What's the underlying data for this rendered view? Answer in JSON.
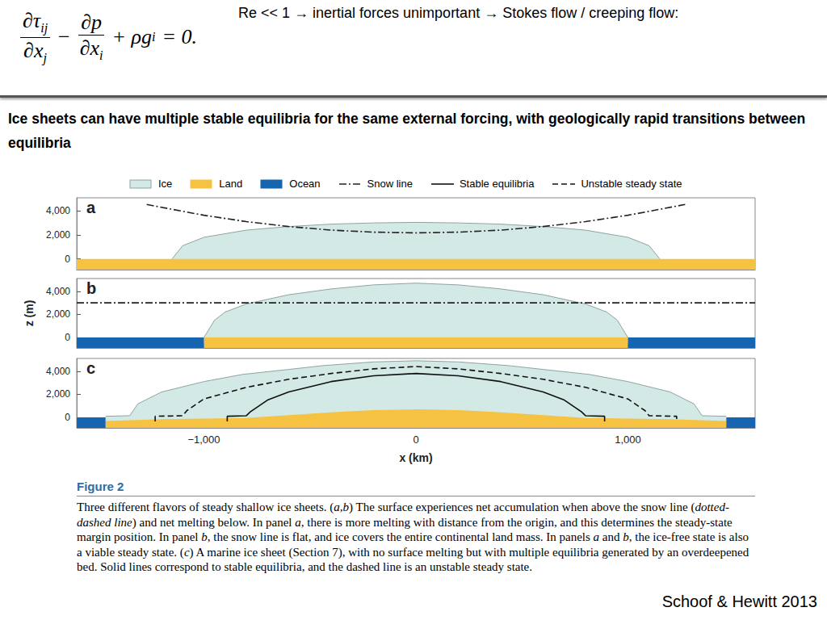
{
  "equation": [
    {
      "frac": {
        "num": [
          "∂τ",
          "ij"
        ],
        "den": [
          "∂x",
          "j"
        ]
      }
    },
    {
      "text": "−"
    },
    {
      "frac": {
        "num": [
          "∂p"
        ],
        "den": [
          "∂x",
          "i"
        ]
      }
    },
    {
      "text": "+ ρg"
    },
    {
      "sub": "i"
    },
    {
      "text": "= 0."
    }
  ],
  "note": "Re << 1 → inertial forces unimportant → Stokes flow / creeping flow:",
  "headline": "Ice sheets can have multiple stable equilibria for the same external forcing, with geologically rapid transitions between equilibria",
  "figure_legend": [
    "Ice",
    "Land",
    "Ocean",
    "Snow line",
    "Stable equilibria",
    "Unstable steady state"
  ],
  "chart_data": [
    {
      "type": "line",
      "label": "a",
      "xlim": [
        -1600,
        1600
      ],
      "ylim": [
        -900,
        5100
      ],
      "xticks": [
        {
          "value": -1000,
          "label": "−1,000"
        },
        0,
        {
          "value": 1000,
          "label": "1,000"
        }
      ],
      "yticks": [
        0,
        {
          "value": 2000,
          "label": "2,000"
        },
        {
          "value": 4000,
          "label": "4,000"
        }
      ],
      "grid": false,
      "tick_labels": "y",
      "series": [
        {
          "name": "Ice",
          "type": "area",
          "color": "#d3e9e6",
          "x": [
            -1150,
            -1100,
            -1000,
            -800,
            -600,
            -400,
            -200,
            0,
            200,
            400,
            600,
            800,
            1000,
            1100,
            1150
          ],
          "values": [
            0,
            1100,
            1800,
            2400,
            2700,
            2900,
            3000,
            3050,
            3000,
            2900,
            2700,
            2400,
            1800,
            1100,
            0
          ]
        },
        {
          "name": "Land",
          "type": "area",
          "color": "#f5c242",
          "x": [
            -1600,
            1600
          ],
          "values": [
            0,
            0
          ]
        },
        {
          "name": "Snow line",
          "type": "line",
          "color": "#222222",
          "line_style": "dashdot",
          "x": [
            -1270,
            -1000,
            -800,
            -600,
            -400,
            -200,
            0,
            200,
            400,
            600,
            800,
            1000,
            1270
          ],
          "values": [
            4540,
            3640,
            3110,
            2700,
            2400,
            2230,
            2170,
            2230,
            2400,
            2700,
            3110,
            3640,
            4540
          ]
        }
      ]
    },
    {
      "type": "line",
      "label": "b",
      "ylabel": "z (m)",
      "xlim": [
        -1600,
        1600
      ],
      "ylim": [
        -900,
        5100
      ],
      "xticks": [
        {
          "value": -1000,
          "label": "−1,000"
        },
        0,
        {
          "value": 1000,
          "label": "1,000"
        }
      ],
      "yticks": [
        0,
        {
          "value": 2000,
          "label": "2,000"
        },
        {
          "value": 4000,
          "label": "4,000"
        }
      ],
      "grid": false,
      "tick_labels": "y",
      "series": [
        {
          "name": "Ice",
          "type": "area",
          "color": "#d3e9e6",
          "x": [
            -1000,
            -950,
            -900,
            -800,
            -600,
            -400,
            -200,
            0,
            200,
            400,
            600,
            800,
            900,
            950,
            1000
          ],
          "values": [
            0,
            1500,
            2200,
            2900,
            3700,
            4200,
            4550,
            4700,
            4550,
            4200,
            3700,
            2900,
            2200,
            1500,
            0
          ]
        },
        {
          "name": "Land",
          "type": "area",
          "color": "#f5c242",
          "x": [
            -1000,
            1000
          ],
          "values": [
            0,
            0
          ]
        },
        {
          "name": "Ocean",
          "type": "area",
          "color": "#1565b0",
          "x": [
            -1600,
            -1000,
            -1000,
            1000,
            1000,
            1600
          ],
          "values": [
            0,
            0,
            null,
            null,
            0,
            0
          ]
        },
        {
          "name": "Snow line",
          "type": "line",
          "color": "#222222",
          "line_style": "dashdot",
          "x": [
            -1600,
            1600
          ],
          "values": [
            3000,
            3000
          ]
        }
      ]
    },
    {
      "type": "line",
      "label": "c",
      "xlabel": "x (km)",
      "xlim": [
        -1600,
        1600
      ],
      "ylim": [
        -900,
        5100
      ],
      "xticks": [
        {
          "value": -1000,
          "label": "−1,000"
        },
        0,
        {
          "value": 1000,
          "label": "1,000"
        }
      ],
      "yticks": [
        0,
        {
          "value": 2000,
          "label": "2,000"
        },
        {
          "value": 4000,
          "label": "4,000"
        }
      ],
      "grid": false,
      "series": [
        {
          "name": "Ice",
          "type": "area",
          "color": "#d3e9e6",
          "x": [
            -1464,
            -1350,
            -1312,
            -1200,
            -1000,
            -817,
            -600,
            -437,
            -200,
            0,
            200,
            437,
            600,
            817,
            1000,
            1200,
            1312,
            1350,
            1464
          ],
          "values": [
            100,
            150,
            1170,
            2200,
            3100,
            3720,
            4150,
            4480,
            4800,
            4900,
            4800,
            4480,
            4150,
            3720,
            3100,
            2200,
            1170,
            150,
            100
          ]
        },
        {
          "name": "Land",
          "type": "area",
          "color": "#f5c242",
          "x": [
            -1464,
            -1200,
            -1000,
            -800,
            -600,
            -400,
            -200,
            0,
            200,
            400,
            600,
            800,
            1000,
            1200,
            1464
          ],
          "values": [
            -300,
            -150,
            -100,
            -50,
            200,
            450,
            640,
            700,
            640,
            450,
            200,
            -50,
            -100,
            -150,
            -300
          ]
        },
        {
          "name": "Ocean",
          "type": "area",
          "color": "#1565b0",
          "x": [
            -1600,
            -1464,
            -1464,
            1464,
            1464,
            1600
          ],
          "values": [
            0,
            0,
            null,
            null,
            0,
            0
          ]
        },
        {
          "name": "Stable equilibria",
          "type": "line",
          "color": "#111111",
          "line_style": "solid",
          "x": [
            -890,
            -890,
            -800,
            -780,
            -700,
            -600,
            -400,
            -200,
            0,
            200,
            400,
            600,
            700,
            780,
            800,
            890,
            890
          ],
          "values": [
            -350,
            100,
            150,
            500,
            1500,
            2200,
            3100,
            3600,
            3800,
            3600,
            3100,
            2200,
            1500,
            500,
            150,
            100,
            -350
          ]
        },
        {
          "name": "Unstable steady state",
          "type": "line",
          "color": "#111111",
          "line_style": "dashed",
          "x": [
            -1230,
            -1230,
            -1100,
            -1080,
            -1000,
            -800,
            -600,
            -400,
            -200,
            0,
            200,
            400,
            600,
            800,
            1000,
            1080,
            1100,
            1230,
            1230
          ],
          "values": [
            -350,
            100,
            150,
            600,
            1600,
            2600,
            3300,
            3800,
            4200,
            4400,
            4200,
            3800,
            3300,
            2600,
            1600,
            600,
            150,
            100,
            -350
          ]
        }
      ]
    }
  ],
  "figure_title": "Figure 2",
  "caption": [
    "Three different flavors of steady shallow ice sheets. (",
    {
      "italic": "a,b"
    },
    ") The surface experiences net accumulation when above the snow line (",
    {
      "italic": "dotted-dashed line"
    },
    ") and net melting below. In panel ",
    {
      "italic": "a"
    },
    ", there is more melting with distance from the origin, and this determines the steady-state margin position. In panel ",
    {
      "italic": "b"
    },
    ", the snow line is flat, and ice covers the entire continental land mass. In panels ",
    {
      "italic": "a"
    },
    " and ",
    {
      "italic": "b"
    },
    ", the ice-free state is also a viable steady state. (",
    {
      "italic": "c"
    },
    ") A marine ice sheet (Section 7), with no surface melting but with multiple equilibria generated by an overdeepened bed. Solid lines correspond to stable equilibria, and the dashed line is an unstable steady state."
  ],
  "citation": "Schoof & Hewitt 2013"
}
